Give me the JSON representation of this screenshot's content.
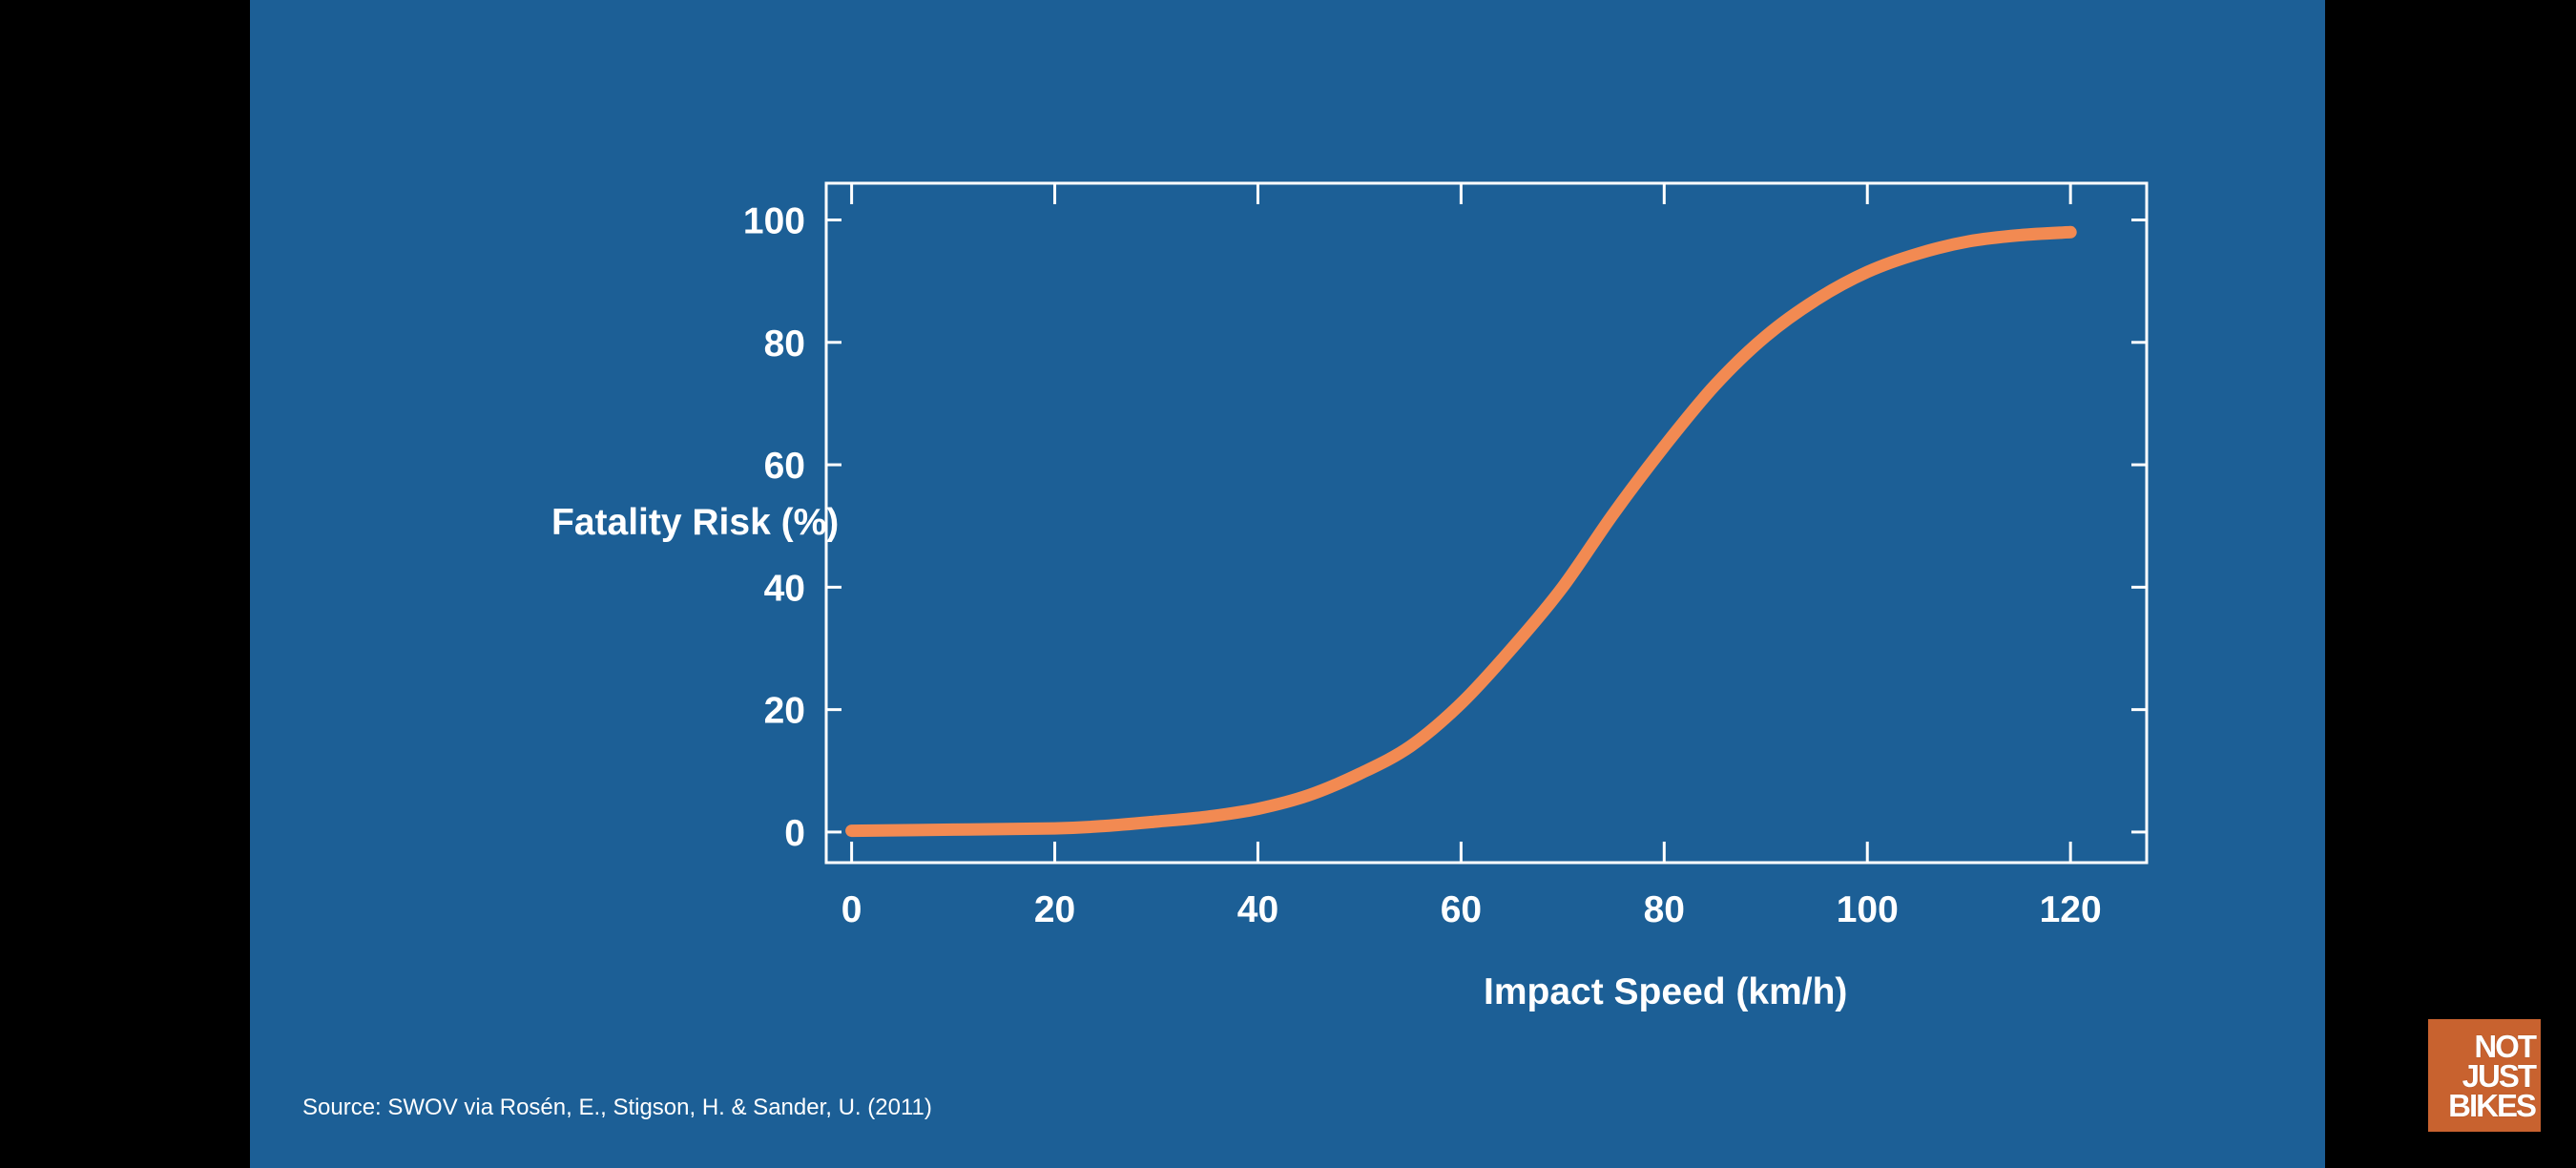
{
  "colors": {
    "background": "#1c5f96",
    "frame": "#ffffff",
    "curve": "#f28a52",
    "text": "#ffffff",
    "letterbox": "#000000",
    "logo_bg": "#c8622f"
  },
  "source_text": "Source: SWOV via Rosén, E., Stigson, H. & Sander, U. (2011)",
  "logo": {
    "lines": [
      "NOT",
      "JUST",
      "BIKES"
    ]
  },
  "chart_data": {
    "type": "line",
    "title": "",
    "xlabel": "Impact Speed (km/h)",
    "ylabel": "Fatality Risk (%)",
    "xlim": [
      -2.5,
      127.5
    ],
    "ylim": [
      -5,
      106
    ],
    "xticks": [
      0,
      20,
      40,
      60,
      80,
      100,
      120
    ],
    "yticks": [
      0,
      20,
      40,
      60,
      80,
      100
    ],
    "grid": false,
    "series": [
      {
        "name": "Fatality risk",
        "x": [
          0,
          10,
          20,
          25,
          30,
          35,
          40,
          45,
          50,
          55,
          60,
          65,
          70,
          75,
          80,
          85,
          90,
          95,
          100,
          105,
          110,
          115,
          120
        ],
        "y": [
          0.2,
          0.4,
          0.6,
          1,
          1.7,
          2.5,
          3.8,
          6,
          9.5,
          14,
          21,
          30,
          40,
          52,
          63,
          73,
          81,
          87,
          91.5,
          94.5,
          96.5,
          97.5,
          98
        ]
      }
    ]
  }
}
